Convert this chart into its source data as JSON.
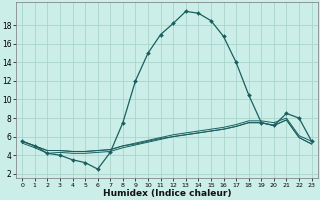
{
  "xlabel": "Humidex (Indice chaleur)",
  "bg_color": "#cceee8",
  "line_color": "#1a5f5f",
  "grid_color": "#aad4cc",
  "xlim": [
    -0.5,
    23.5
  ],
  "ylim": [
    1.5,
    20.5
  ],
  "yticks": [
    2,
    4,
    6,
    8,
    10,
    12,
    14,
    16,
    18
  ],
  "xticks": [
    0,
    1,
    2,
    3,
    4,
    5,
    6,
    7,
    8,
    9,
    10,
    11,
    12,
    13,
    14,
    15,
    16,
    17,
    18,
    19,
    20,
    21,
    22,
    23
  ],
  "curve1_x": [
    0,
    1,
    2,
    3,
    4,
    5,
    6,
    7,
    8,
    9,
    10,
    11,
    12,
    13,
    14,
    15,
    16,
    17,
    18,
    19,
    20,
    21,
    22,
    23
  ],
  "curve1_y": [
    5.5,
    5.0,
    4.2,
    4.0,
    3.5,
    3.2,
    2.5,
    4.3,
    7.5,
    12.0,
    15.0,
    17.0,
    18.2,
    19.5,
    19.3,
    18.5,
    16.8,
    14.0,
    10.5,
    7.5,
    7.2,
    8.5,
    8.0,
    5.5
  ],
  "curve2_x": [
    0,
    1,
    2,
    3,
    4,
    5,
    6,
    7,
    8,
    9,
    10,
    11,
    12,
    13,
    14,
    15,
    16,
    17,
    18,
    19,
    20,
    21,
    22,
    23
  ],
  "curve2_y": [
    5.3,
    4.8,
    4.2,
    4.3,
    4.2,
    4.2,
    4.3,
    4.4,
    4.8,
    5.1,
    5.4,
    5.7,
    6.0,
    6.2,
    6.4,
    6.6,
    6.8,
    7.1,
    7.5,
    7.5,
    7.2,
    7.8,
    5.9,
    5.2
  ],
  "curve3_x": [
    0,
    1,
    2,
    3,
    4,
    5,
    6,
    7,
    8,
    9,
    10,
    11,
    12,
    13,
    14,
    15,
    16,
    17,
    18,
    19,
    20,
    21,
    22,
    23
  ],
  "curve3_y": [
    5.5,
    5.0,
    4.5,
    4.5,
    4.4,
    4.4,
    4.5,
    4.6,
    5.0,
    5.3,
    5.6,
    5.9,
    6.2,
    6.4,
    6.6,
    6.8,
    7.0,
    7.3,
    7.7,
    7.7,
    7.5,
    8.0,
    6.1,
    5.5
  ],
  "curve4_x": [
    0,
    1,
    2,
    3,
    4,
    5,
    6,
    7,
    8,
    9,
    10,
    11,
    12,
    13,
    14,
    15,
    16,
    17,
    18,
    19,
    20,
    21,
    22,
    23
  ],
  "curve4_y": [
    5.5,
    5.0,
    4.5,
    4.5,
    4.4,
    4.4,
    4.5,
    4.6,
    5.0,
    5.2,
    5.5,
    5.8,
    6.0,
    6.2,
    6.4,
    6.6,
    6.8,
    7.1,
    7.5,
    7.5,
    7.2,
    7.8,
    5.9,
    5.2
  ]
}
